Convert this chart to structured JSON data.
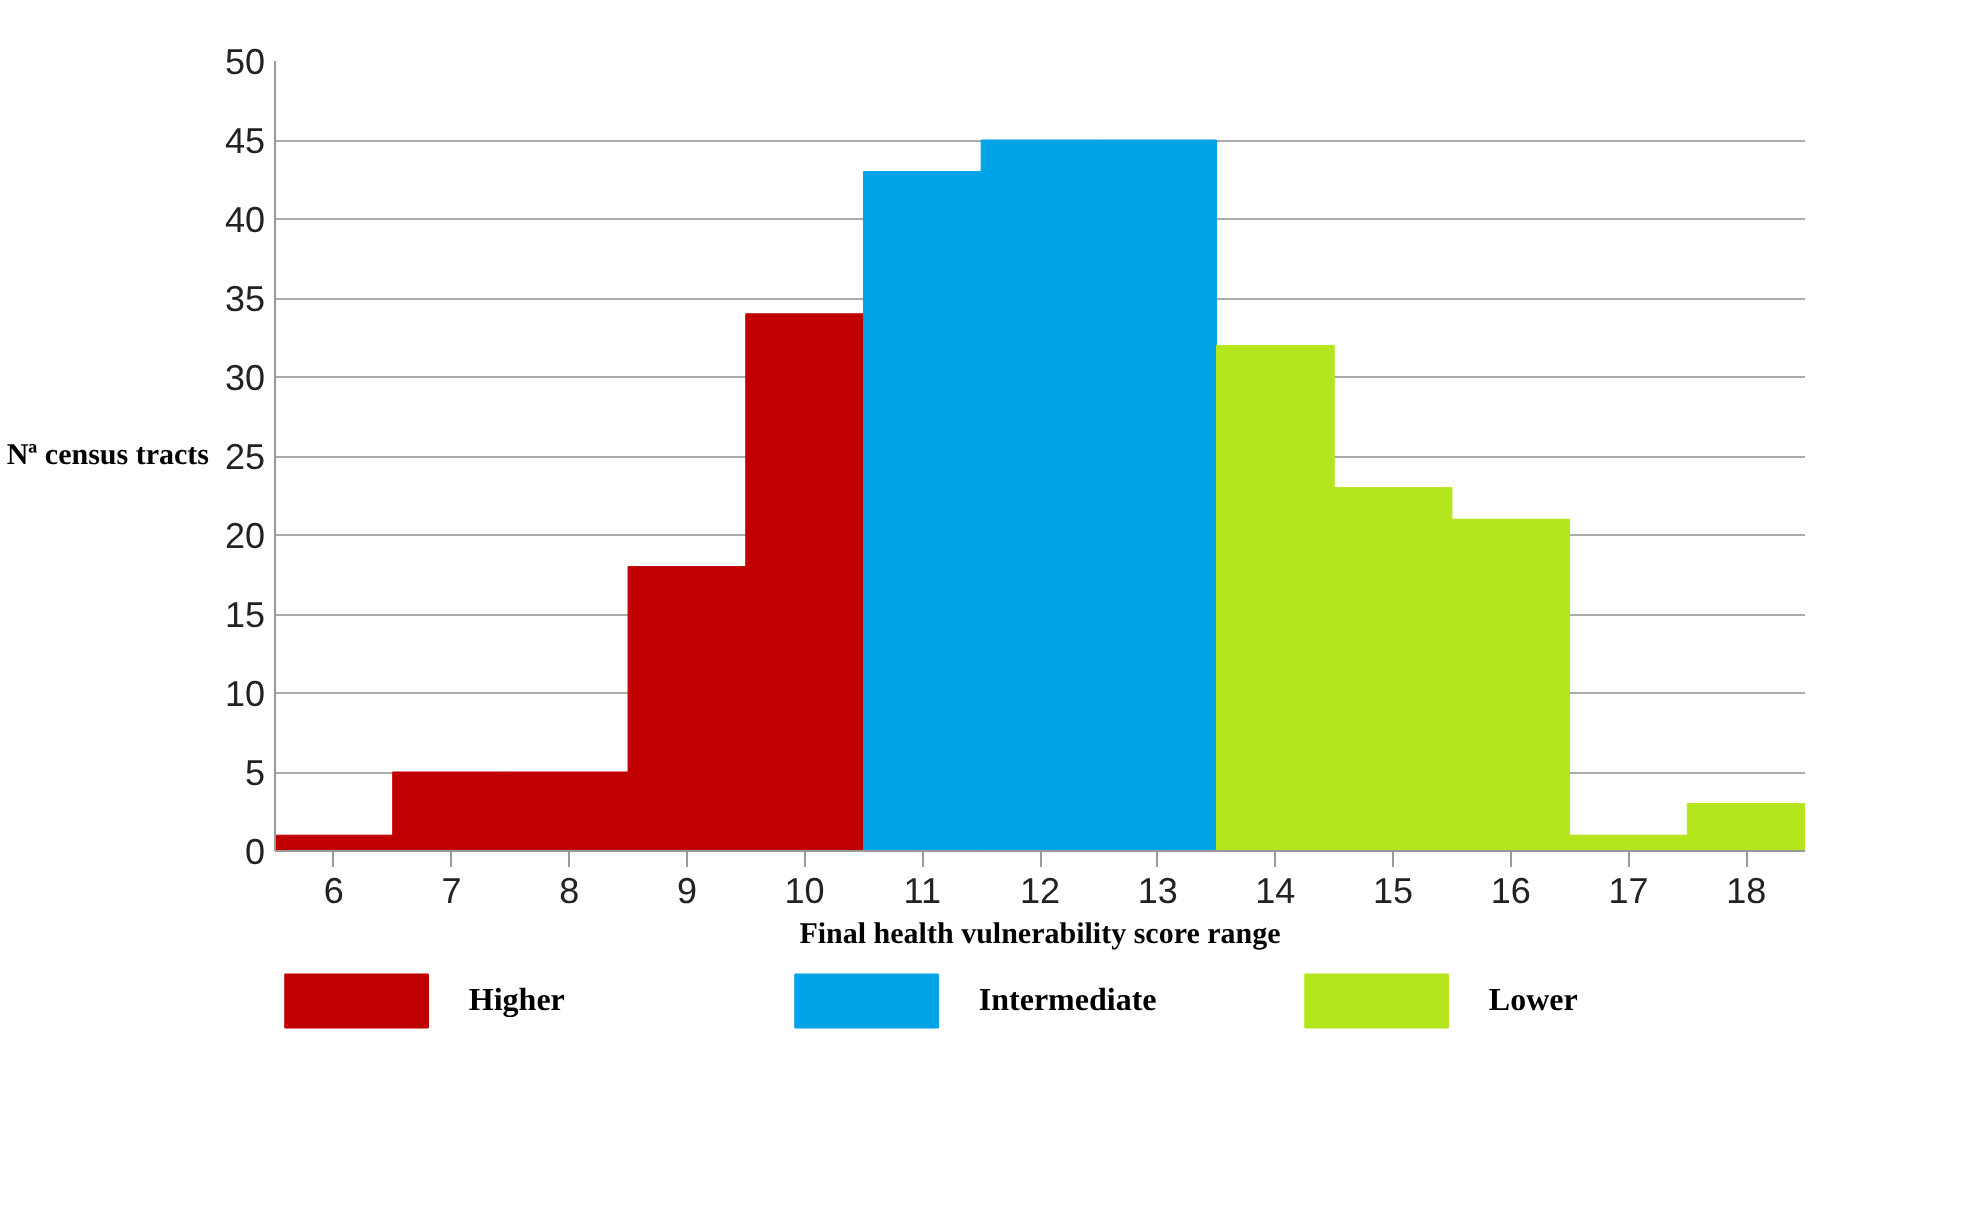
{
  "chart_data": {
    "type": "bar",
    "xlabel": "Final health vulnerability score range",
    "ylabel": "Nª census tracts",
    "categories": [
      "6",
      "7",
      "8",
      "9",
      "10",
      "11",
      "12",
      "13",
      "14",
      "15",
      "16",
      "17",
      "18"
    ],
    "series": [
      {
        "name": "Higher",
        "color": "#c00000",
        "values": [
          1,
          5,
          5,
          18,
          34,
          null,
          null,
          null,
          null,
          null,
          null,
          null,
          null
        ]
      },
      {
        "name": "Intermediate",
        "color": "#00a3e6",
        "values": [
          null,
          null,
          null,
          null,
          null,
          43,
          45,
          45,
          null,
          null,
          null,
          null,
          null
        ]
      },
      {
        "name": "Lower",
        "color": "#b5e61d",
        "values": [
          null,
          null,
          null,
          null,
          null,
          null,
          null,
          null,
          32,
          23,
          21,
          1,
          3
        ]
      }
    ],
    "ylim": [
      0,
      50
    ],
    "yticks": [
      0,
      5,
      10,
      15,
      20,
      25,
      30,
      35,
      40,
      45,
      50
    ],
    "grid": "y",
    "legend": "bottom"
  }
}
